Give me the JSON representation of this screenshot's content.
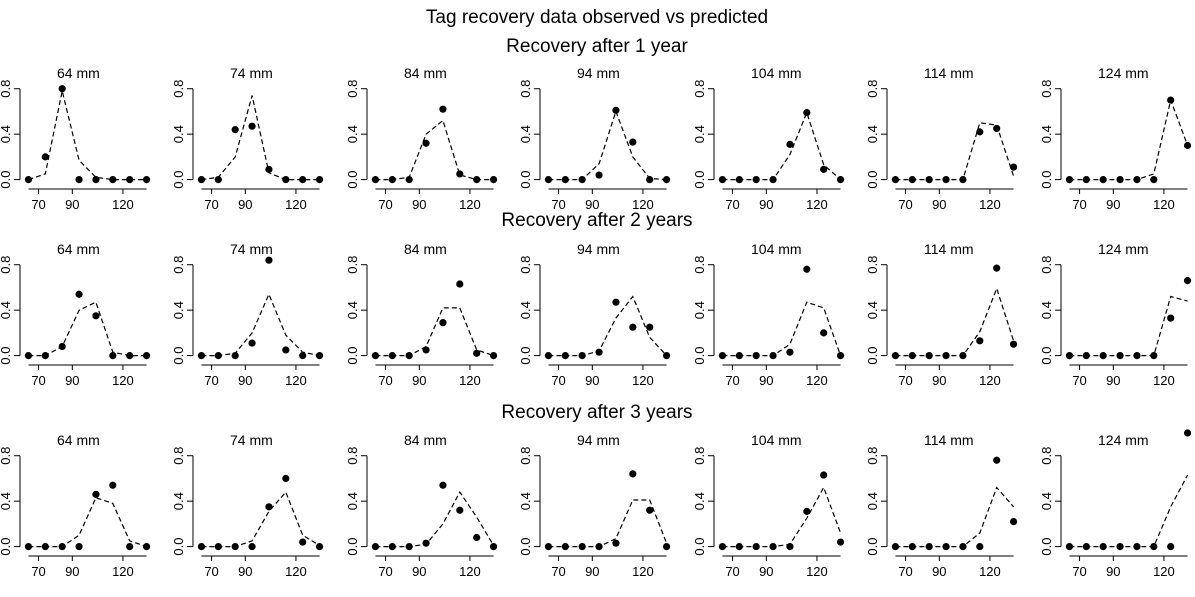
{
  "figure": {
    "title": "Tag recovery data observed vs predicted",
    "row_titles": [
      "Recovery after 1 year",
      "Recovery after 2 years",
      "Recovery after 3 years"
    ]
  },
  "chart_data": {
    "type": "line",
    "layout": "small multiples, 3 rows (years at liberty) by 7 columns (release size class)",
    "x": [
      64,
      74,
      84,
      94,
      104,
      114,
      124,
      134
    ],
    "xlim": [
      59,
      139
    ],
    "ylim": [
      -0.03,
      1.0
    ],
    "xticks": [
      70,
      90,
      120
    ],
    "yticks": [
      0.0,
      0.4,
      0.8
    ],
    "xtick_labels": [
      "70",
      "90",
      "120"
    ],
    "ytick_labels": [
      "0.0",
      "0.4",
      "0.8"
    ],
    "series_styles": {
      "observed": "points",
      "predicted": "dashed line"
    },
    "panels": [
      [
        {
          "label": "64 mm",
          "observed": [
            0.0,
            0.2,
            0.8,
            0.0,
            0.0,
            0.0,
            0.0,
            0.0
          ],
          "predicted": [
            0.0,
            0.05,
            0.78,
            0.17,
            0.02,
            0.0,
            0.0,
            0.0
          ]
        },
        {
          "label": "74 mm",
          "observed": [
            0.0,
            0.0,
            0.44,
            0.47,
            0.09,
            0.0,
            0.0,
            0.0
          ],
          "predicted": [
            0.0,
            0.02,
            0.2,
            0.74,
            0.06,
            0.0,
            0.0,
            0.0
          ]
        },
        {
          "label": "84 mm",
          "observed": [
            0.0,
            0.0,
            0.0,
            0.32,
            0.62,
            0.05,
            0.0,
            0.0
          ],
          "predicted": [
            0.0,
            0.0,
            0.02,
            0.4,
            0.52,
            0.04,
            0.0,
            0.0
          ]
        },
        {
          "label": "94 mm",
          "observed": [
            0.0,
            0.0,
            0.0,
            0.04,
            0.61,
            0.33,
            0.0,
            0.0
          ],
          "predicted": [
            0.0,
            0.0,
            0.0,
            0.14,
            0.6,
            0.2,
            0.01,
            0.0
          ]
        },
        {
          "label": "104 mm",
          "observed": [
            0.0,
            0.0,
            0.0,
            0.0,
            0.31,
            0.59,
            0.09,
            0.0
          ],
          "predicted": [
            0.0,
            0.0,
            0.0,
            0.0,
            0.22,
            0.59,
            0.13,
            0.0
          ]
        },
        {
          "label": "114 mm",
          "observed": [
            0.0,
            0.0,
            0.0,
            0.0,
            0.0,
            0.42,
            0.45,
            0.11
          ],
          "predicted": [
            0.0,
            0.0,
            0.0,
            0.0,
            0.0,
            0.5,
            0.48,
            0.03
          ]
        },
        {
          "label": "124 mm",
          "observed": [
            0.0,
            0.0,
            0.0,
            0.0,
            0.0,
            0.0,
            0.7,
            0.3
          ],
          "predicted": [
            0.0,
            0.0,
            0.0,
            0.0,
            0.0,
            0.05,
            0.7,
            0.3
          ]
        }
      ],
      [
        {
          "label": "64 mm",
          "observed": [
            0.0,
            0.0,
            0.08,
            0.54,
            0.35,
            0.0,
            0.0,
            0.0
          ],
          "predicted": [
            0.0,
            0.0,
            0.08,
            0.4,
            0.47,
            0.03,
            0.0,
            0.0
          ]
        },
        {
          "label": "74 mm",
          "observed": [
            0.0,
            0.0,
            0.0,
            0.11,
            0.84,
            0.05,
            0.0,
            0.0
          ],
          "predicted": [
            0.0,
            0.0,
            0.02,
            0.2,
            0.54,
            0.18,
            0.03,
            0.0
          ]
        },
        {
          "label": "84 mm",
          "observed": [
            0.0,
            0.0,
            0.0,
            0.05,
            0.29,
            0.63,
            0.02,
            0.0
          ],
          "predicted": [
            0.0,
            0.0,
            0.0,
            0.08,
            0.42,
            0.42,
            0.05,
            0.0
          ]
        },
        {
          "label": "94 mm",
          "observed": [
            0.0,
            0.0,
            0.0,
            0.03,
            0.47,
            0.25,
            0.25,
            0.0
          ],
          "predicted": [
            0.0,
            0.0,
            0.0,
            0.04,
            0.33,
            0.52,
            0.16,
            0.0
          ]
        },
        {
          "label": "104 mm",
          "observed": [
            0.0,
            0.0,
            0.0,
            0.0,
            0.03,
            0.76,
            0.2,
            0.0
          ],
          "predicted": [
            0.0,
            0.0,
            0.0,
            0.0,
            0.1,
            0.47,
            0.42,
            0.0
          ]
        },
        {
          "label": "114 mm",
          "observed": [
            0.0,
            0.0,
            0.0,
            0.0,
            0.0,
            0.13,
            0.77,
            0.1
          ],
          "predicted": [
            0.0,
            0.0,
            0.0,
            0.0,
            0.0,
            0.21,
            0.59,
            0.13
          ]
        },
        {
          "label": "124 mm",
          "observed": [
            0.0,
            0.0,
            0.0,
            0.0,
            0.0,
            0.0,
            0.33,
            0.66
          ],
          "predicted": [
            0.0,
            0.0,
            0.0,
            0.0,
            0.0,
            0.0,
            0.52,
            0.48
          ]
        }
      ],
      [
        {
          "label": "64 mm",
          "observed": [
            0.0,
            0.0,
            0.0,
            0.0,
            0.46,
            0.54,
            0.0,
            0.0
          ],
          "predicted": [
            0.0,
            0.0,
            0.0,
            0.1,
            0.43,
            0.38,
            0.05,
            0.0
          ]
        },
        {
          "label": "74 mm",
          "observed": [
            0.0,
            0.0,
            0.0,
            0.0,
            0.35,
            0.6,
            0.04,
            0.0
          ],
          "predicted": [
            0.0,
            0.0,
            0.0,
            0.05,
            0.31,
            0.48,
            0.1,
            0.01
          ]
        },
        {
          "label": "84 mm",
          "observed": [
            0.0,
            0.0,
            0.0,
            0.03,
            0.54,
            0.32,
            0.08,
            0.0
          ],
          "predicted": [
            0.0,
            0.0,
            0.0,
            0.02,
            0.2,
            0.48,
            0.26,
            0.01
          ]
        },
        {
          "label": "94 mm",
          "observed": [
            0.0,
            0.0,
            0.0,
            0.0,
            0.03,
            0.64,
            0.32,
            0.0
          ],
          "predicted": [
            0.0,
            0.0,
            0.0,
            0.0,
            0.07,
            0.41,
            0.41,
            0.03
          ]
        },
        {
          "label": "104 mm",
          "observed": [
            0.0,
            0.0,
            0.0,
            0.0,
            0.0,
            0.31,
            0.63,
            0.04
          ],
          "predicted": [
            0.0,
            0.0,
            0.0,
            0.0,
            0.02,
            0.25,
            0.52,
            0.12
          ]
        },
        {
          "label": "114 mm",
          "observed": [
            0.0,
            0.0,
            0.0,
            0.0,
            0.0,
            0.0,
            0.76,
            0.22
          ],
          "predicted": [
            0.0,
            0.0,
            0.0,
            0.0,
            0.0,
            0.12,
            0.52,
            0.35
          ]
        },
        {
          "label": "124 mm",
          "observed": [
            0.0,
            0.0,
            0.0,
            0.0,
            0.0,
            0.0,
            0.0,
            1.0
          ],
          "predicted": [
            0.0,
            0.0,
            0.0,
            0.0,
            0.0,
            0.0,
            0.35,
            0.63
          ]
        }
      ]
    ]
  }
}
